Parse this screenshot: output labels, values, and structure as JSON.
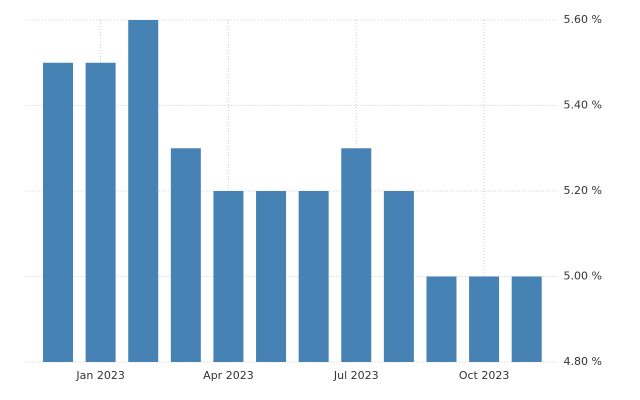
{
  "chart_data": {
    "type": "bar",
    "categories": [
      null,
      "Jan 2023",
      null,
      null,
      "Apr 2023",
      null,
      null,
      "Jul 2023",
      null,
      null,
      "Oct 2023",
      null
    ],
    "values": [
      5.5,
      5.5,
      5.6,
      5.3,
      5.2,
      5.2,
      5.2,
      5.3,
      5.2,
      5.0,
      5.0,
      5.0
    ],
    "color": "#4682b4",
    "ylim": [
      4.8,
      5.6
    ],
    "yticks": [
      {
        "value": 4.8,
        "label": "4.80 %"
      },
      {
        "value": 5.0,
        "label": "5.00 %"
      },
      {
        "value": 5.2,
        "label": "5.20 %"
      },
      {
        "value": 5.4,
        "label": "5.40 %"
      },
      {
        "value": 5.6,
        "label": "5.60 %"
      }
    ],
    "grid": true
  }
}
